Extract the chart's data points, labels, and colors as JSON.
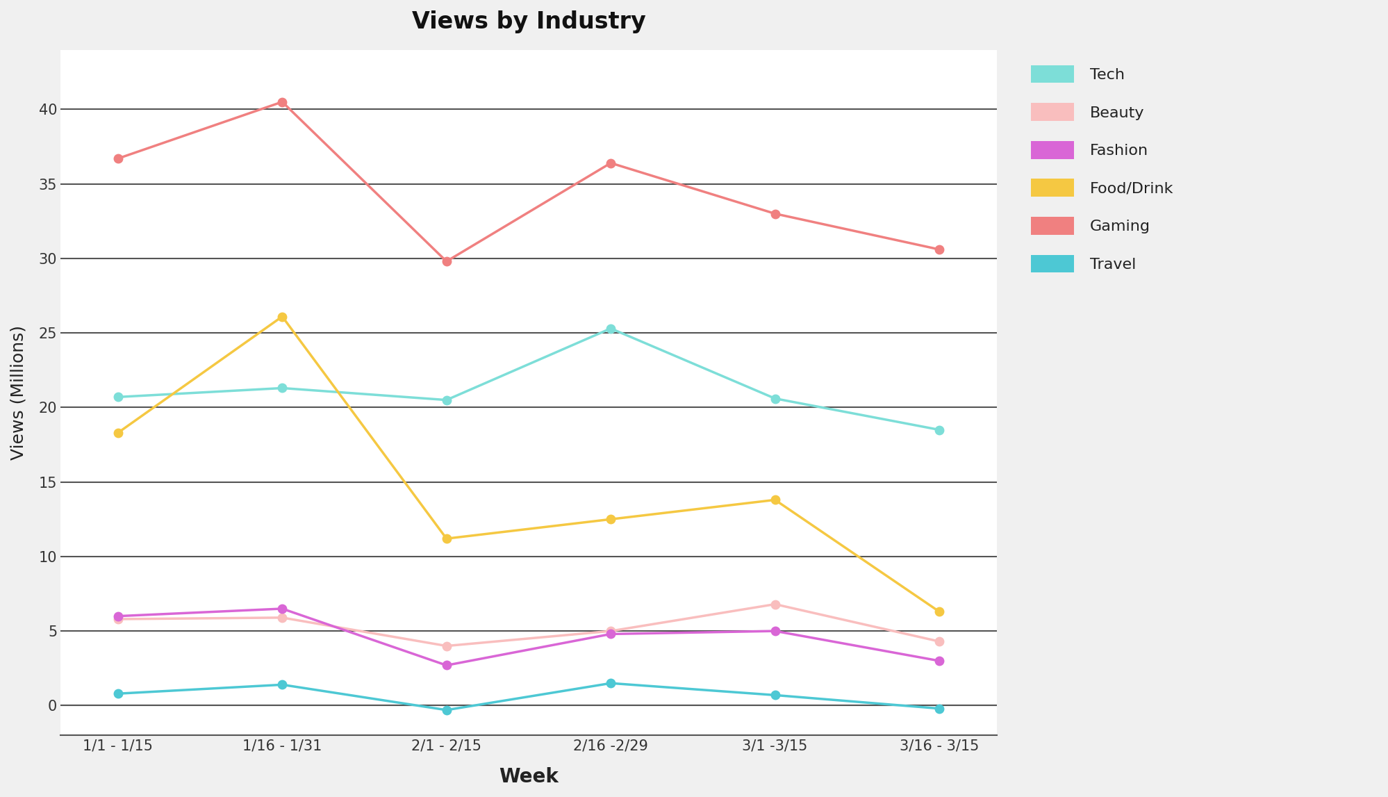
{
  "title": "Views by Industry",
  "xlabel": "Week",
  "ylabel": "Views (Millions)",
  "weeks": [
    "1/1 - 1/15",
    "1/16 - 1/31",
    "2/1 - 2/15",
    "2/16 -2/29",
    "3/1 -3/15",
    "3/16 - 3/15"
  ],
  "series": {
    "Tech": {
      "values": [
        20.7,
        21.3,
        20.5,
        25.3,
        20.6,
        18.5
      ],
      "color": "#7DDED8",
      "marker": "o"
    },
    "Beauty": {
      "values": [
        5.8,
        5.9,
        4.0,
        5.0,
        6.8,
        4.3
      ],
      "color": "#F9BEBE",
      "marker": "o"
    },
    "Fashion": {
      "values": [
        6.0,
        6.5,
        2.7,
        4.8,
        5.0,
        3.0
      ],
      "color": "#D966D6",
      "marker": "o"
    },
    "Food/Drink": {
      "values": [
        18.3,
        26.1,
        11.2,
        12.5,
        13.8,
        6.3
      ],
      "color": "#F5C842",
      "marker": "o"
    },
    "Gaming": {
      "values": [
        36.7,
        40.5,
        29.8,
        36.4,
        33.0,
        30.6
      ],
      "color": "#F08080",
      "marker": "o"
    },
    "Travel": {
      "values": [
        0.8,
        1.4,
        -0.3,
        1.5,
        0.7,
        -0.2
      ],
      "color": "#4DC8D4",
      "marker": "o"
    }
  },
  "ylim": [
    -2,
    44
  ],
  "yticks": [
    0,
    5,
    10,
    15,
    20,
    25,
    30,
    35,
    40
  ],
  "background_color": "#F0F0F0",
  "plot_bg_color": "#FFFFFF",
  "grid_color": "#555555",
  "title_fontsize": 24,
  "axis_label_fontsize": 18,
  "tick_fontsize": 15,
  "legend_fontsize": 16,
  "line_width": 2.5,
  "marker_size": 9
}
